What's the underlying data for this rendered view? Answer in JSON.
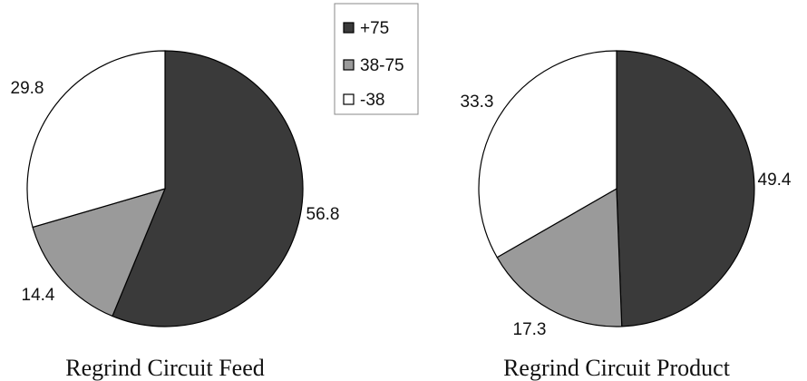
{
  "legend": {
    "entries": [
      {
        "label": "+75",
        "color": "#3a3a3a"
      },
      {
        "label": "38-75",
        "color": "#9a9a9a"
      },
      {
        "label": "-38",
        "color": "#ffffff"
      }
    ]
  },
  "chart_data": [
    {
      "type": "pie",
      "title": "Regrind Circuit Feed",
      "categories": [
        "+75",
        "38-75",
        "-38"
      ],
      "values": [
        56.8,
        14.4,
        29.8
      ],
      "colors": [
        "#3a3a3a",
        "#9a9a9a",
        "#ffffff"
      ],
      "start": "12 o'clock",
      "direction": "clockwise"
    },
    {
      "type": "pie",
      "title": "Regrind Circuit Product",
      "categories": [
        "+75",
        "38-75",
        "-38"
      ],
      "values": [
        49.4,
        17.3,
        33.3
      ],
      "colors": [
        "#3a3a3a",
        "#9a9a9a",
        "#ffffff"
      ],
      "start": "12 o'clock",
      "direction": "clockwise"
    }
  ]
}
